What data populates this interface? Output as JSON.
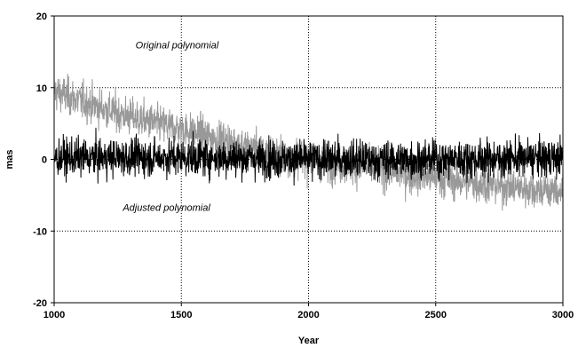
{
  "chart_data": {
    "type": "line",
    "title": "",
    "xlabel": "Year",
    "ylabel": "mas",
    "xlim": [
      1000,
      3000
    ],
    "ylim": [
      -20,
      20
    ],
    "xticks": [
      1000,
      1500,
      2000,
      2500,
      3000
    ],
    "yticks": [
      -20,
      -10,
      0,
      10,
      20
    ],
    "grid": true,
    "legend": "none",
    "series": [
      {
        "color": "#999999",
        "x": [
          1000,
          1100,
          1200,
          1300,
          1400,
          1500,
          1600,
          1700,
          1800,
          1900,
          2000,
          2100,
          2200,
          2300,
          2400,
          2500,
          2600,
          2700,
          2800,
          2900,
          3000
        ],
        "y": [
          9.5,
          8.2,
          7.0,
          5.9,
          5.0,
          4.2,
          3.2,
          2.3,
          1.3,
          0.4,
          0,
          -0.6,
          -1.1,
          -1.6,
          -2.1,
          -2.6,
          -3.1,
          -3.5,
          -3.9,
          -4.2,
          -4.5
        ],
        "noise": 1.3
      },
      {
        "color": "#000000",
        "x": [
          1000,
          1500,
          2000,
          2500,
          3000
        ],
        "y": [
          0.2,
          0.3,
          0,
          0,
          0.2
        ],
        "noise": 1.3
      }
    ],
    "annotations": [
      {
        "text": "Original polynomial",
        "x": 1320,
        "y": 15.5
      },
      {
        "text": "Adjusted polynomial",
        "x": 1270,
        "y": -7.2
      }
    ]
  }
}
